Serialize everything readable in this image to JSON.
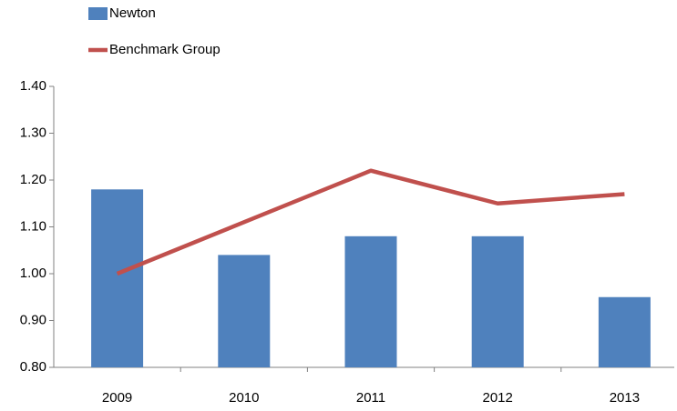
{
  "chart_data": {
    "type": "bar",
    "categories": [
      "2009",
      "2010",
      "2011",
      "2012",
      "2013"
    ],
    "series": [
      {
        "name": "Newton",
        "type": "bar",
        "color": "#4f81bd",
        "values": [
          1.18,
          1.04,
          1.08,
          1.08,
          0.95
        ]
      },
      {
        "name": "Benchmark Group",
        "type": "line",
        "color": "#c0504d",
        "values": [
          1.0,
          1.11,
          1.22,
          1.15,
          1.17
        ]
      }
    ],
    "ylim": [
      0.8,
      1.4
    ],
    "yticks": [
      {
        "value": 0.8,
        "label": "0.80"
      },
      {
        "value": 0.9,
        "label": "0.90"
      },
      {
        "value": 1.0,
        "label": "1.00"
      },
      {
        "value": 1.1,
        "label": "1.10"
      },
      {
        "value": 1.2,
        "label": "1.20"
      },
      {
        "value": 1.3,
        "label": "1.30"
      },
      {
        "value": 1.4,
        "label": "1.40"
      }
    ],
    "grid": false,
    "legend": "top-left"
  }
}
